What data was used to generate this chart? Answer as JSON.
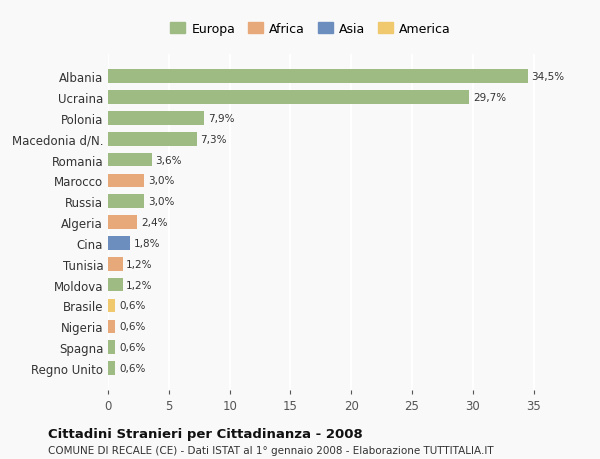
{
  "countries": [
    "Albania",
    "Ucraina",
    "Polonia",
    "Macedonia d/N.",
    "Romania",
    "Marocco",
    "Russia",
    "Algeria",
    "Cina",
    "Tunisia",
    "Moldova",
    "Brasile",
    "Nigeria",
    "Spagna",
    "Regno Unito"
  ],
  "values": [
    34.5,
    29.7,
    7.9,
    7.3,
    3.6,
    3.0,
    3.0,
    2.4,
    1.8,
    1.2,
    1.2,
    0.6,
    0.6,
    0.6,
    0.6
  ],
  "labels": [
    "34,5%",
    "29,7%",
    "7,9%",
    "7,3%",
    "3,6%",
    "3,0%",
    "3,0%",
    "2,4%",
    "1,8%",
    "1,2%",
    "1,2%",
    "0,6%",
    "0,6%",
    "0,6%",
    "0,6%"
  ],
  "continents": [
    "Europa",
    "Europa",
    "Europa",
    "Europa",
    "Europa",
    "Africa",
    "Europa",
    "Africa",
    "Asia",
    "Africa",
    "Europa",
    "America",
    "Africa",
    "Europa",
    "Europa"
  ],
  "colors": {
    "Europa": "#9ebb84",
    "Africa": "#e8a97a",
    "Asia": "#6b8ebf",
    "America": "#f0c96e"
  },
  "legend_order": [
    "Europa",
    "Africa",
    "Asia",
    "America"
  ],
  "title": "Cittadini Stranieri per Cittadinanza - 2008",
  "subtitle": "COMUNE DI RECALE (CE) - Dati ISTAT al 1° gennaio 2008 - Elaborazione TUTTITALIA.IT",
  "xlim": [
    0,
    37
  ],
  "xticks": [
    0,
    5,
    10,
    15,
    20,
    25,
    30,
    35
  ],
  "bg_color": "#f9f9f9",
  "grid_color": "#ffffff",
  "bar_height": 0.65
}
